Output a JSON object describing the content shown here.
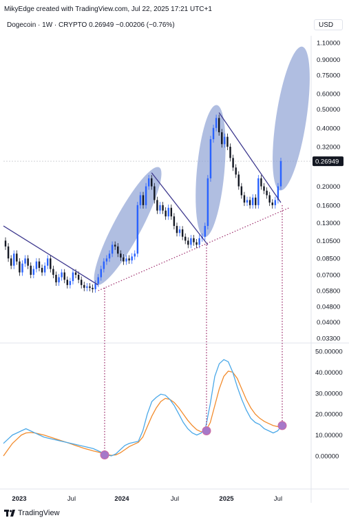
{
  "header": {
    "attribution": "MikyEdge created with TradingView.com, Jul 22, 2025 17:21 UTC+1"
  },
  "symbol": {
    "line": "Dogecoin · 1W · CRYPTO  0.26949  −0.00206 (−0.76%)",
    "currency": "USD"
  },
  "footer": {
    "brand": "TradingView"
  },
  "colors": {
    "up": "#2962ff",
    "down": "#131722",
    "trendline": "#3f3a8f",
    "support": "#9c2a6a",
    "ellipse": "#8fa3d4",
    "rsi": "#4aa8e8",
    "rsi_ma": "#f28b2c",
    "marker": "#a678c8"
  },
  "chart_data": [
    {
      "type": "candlestick",
      "scale": "log",
      "price_axis_ticks": [
        1.1,
        0.9,
        0.75,
        0.6,
        0.5,
        0.4,
        0.32,
        0.2,
        0.16,
        0.13,
        0.105,
        0.085,
        0.07,
        0.058,
        0.048,
        0.04,
        0.033
      ],
      "price_axis_labels": [
        "1.10000",
        "0.90000",
        "0.75000",
        "0.60000",
        "0.50000",
        "0.40000",
        "0.32000",
        "0.20000",
        "0.16000",
        "0.13000",
        "0.10500",
        "0.08500",
        "0.07000",
        "0.05800",
        "0.04800",
        "0.04000",
        "0.03300"
      ],
      "last_price": 0.26949,
      "last_price_label": "0.26949",
      "x_ticks": [
        "2023",
        "Jul",
        "2024",
        "Jul",
        "2025",
        "Jul"
      ],
      "ohlc_weekly_approx": [
        [
          0.105,
          0.098
        ],
        [
          0.098,
          0.085
        ],
        [
          0.085,
          0.078
        ],
        [
          0.078,
          0.09
        ],
        [
          0.09,
          0.082
        ],
        [
          0.082,
          0.072
        ],
        [
          0.072,
          0.08
        ],
        [
          0.08,
          0.085
        ],
        [
          0.085,
          0.078
        ],
        [
          0.078,
          0.07
        ],
        [
          0.07,
          0.075
        ],
        [
          0.075,
          0.082
        ],
        [
          0.082,
          0.076
        ],
        [
          0.076,
          0.072
        ],
        [
          0.072,
          0.078
        ],
        [
          0.078,
          0.085
        ],
        [
          0.085,
          0.075
        ],
        [
          0.075,
          0.07
        ],
        [
          0.07,
          0.064
        ],
        [
          0.064,
          0.068
        ],
        [
          0.068,
          0.072
        ],
        [
          0.072,
          0.066
        ],
        [
          0.066,
          0.062
        ],
        [
          0.062,
          0.065
        ],
        [
          0.065,
          0.072
        ],
        [
          0.072,
          0.07
        ],
        [
          0.07,
          0.066
        ],
        [
          0.066,
          0.062
        ],
        [
          0.062,
          0.06
        ],
        [
          0.06,
          0.061
        ],
        [
          0.061,
          0.06
        ],
        [
          0.06,
          0.059
        ],
        [
          0.059,
          0.063
        ],
        [
          0.063,
          0.068
        ],
        [
          0.068,
          0.075
        ],
        [
          0.075,
          0.082
        ],
        [
          0.082,
          0.085
        ],
        [
          0.085,
          0.09
        ],
        [
          0.09,
          0.1
        ],
        [
          0.1,
          0.098
        ],
        [
          0.098,
          0.09
        ],
        [
          0.09,
          0.086
        ],
        [
          0.086,
          0.082
        ],
        [
          0.082,
          0.085
        ],
        [
          0.085,
          0.083
        ],
        [
          0.083,
          0.087
        ],
        [
          0.087,
          0.09
        ],
        [
          0.09,
          0.16
        ],
        [
          0.16,
          0.18
        ],
        [
          0.18,
          0.16
        ],
        [
          0.16,
          0.2
        ],
        [
          0.2,
          0.22
        ],
        [
          0.22,
          0.2
        ],
        [
          0.2,
          0.17
        ],
        [
          0.17,
          0.15
        ],
        [
          0.15,
          0.16
        ],
        [
          0.16,
          0.15
        ],
        [
          0.15,
          0.14
        ],
        [
          0.14,
          0.155
        ],
        [
          0.155,
          0.14
        ],
        [
          0.14,
          0.125
        ],
        [
          0.125,
          0.115
        ],
        [
          0.115,
          0.12
        ],
        [
          0.12,
          0.11
        ],
        [
          0.11,
          0.105
        ],
        [
          0.105,
          0.1
        ],
        [
          0.1,
          0.108
        ],
        [
          0.108,
          0.103
        ],
        [
          0.103,
          0.1
        ],
        [
          0.1,
          0.108
        ],
        [
          0.108,
          0.11
        ],
        [
          0.11,
          0.125
        ],
        [
          0.125,
          0.22
        ],
        [
          0.22,
          0.35
        ],
        [
          0.35,
          0.4
        ],
        [
          0.4,
          0.45
        ],
        [
          0.45,
          0.38
        ],
        [
          0.38,
          0.33
        ],
        [
          0.33,
          0.36
        ],
        [
          0.36,
          0.32
        ],
        [
          0.32,
          0.28
        ],
        [
          0.28,
          0.25
        ],
        [
          0.25,
          0.23
        ],
        [
          0.23,
          0.2
        ],
        [
          0.2,
          0.18
        ],
        [
          0.18,
          0.165
        ],
        [
          0.165,
          0.17
        ],
        [
          0.17,
          0.16
        ],
        [
          0.16,
          0.175
        ],
        [
          0.175,
          0.16
        ],
        [
          0.16,
          0.22
        ],
        [
          0.22,
          0.2
        ],
        [
          0.2,
          0.19
        ],
        [
          0.19,
          0.18
        ],
        [
          0.18,
          0.165
        ],
        [
          0.165,
          0.16
        ],
        [
          0.16,
          0.17
        ],
        [
          0.17,
          0.2
        ],
        [
          0.2,
          0.27
        ]
      ]
    },
    {
      "type": "line",
      "name": "",
      "axis_ticks": [
        50,
        40,
        30,
        20,
        10,
        0
      ],
      "axis_labels": [
        "50.00000",
        "40.00000",
        "30.00000",
        "20.00000",
        "10.00000",
        "0.00000"
      ],
      "rsi": [
        6,
        8,
        10,
        11,
        12,
        13,
        12,
        11,
        10,
        9,
        8.5,
        8,
        7.5,
        7,
        6.5,
        6,
        5.5,
        5,
        4.5,
        4,
        3.5,
        2.5,
        1.5,
        0.5,
        0,
        1,
        3,
        5,
        6,
        6.5,
        7,
        12,
        20,
        26,
        28,
        29.5,
        29,
        27,
        24,
        20,
        16,
        13,
        11,
        10,
        11,
        14,
        25,
        38,
        44,
        46,
        45,
        40,
        33,
        27,
        22,
        18,
        16,
        15,
        13,
        12,
        11,
        12,
        15
      ],
      "rsi_ma": [
        0,
        3,
        6,
        8,
        10,
        11,
        11.2,
        11,
        10.5,
        10,
        9.3,
        8.6,
        7.9,
        7.2,
        6.5,
        5.8,
        5,
        4.3,
        3.6,
        3,
        2.4,
        1.9,
        1.3,
        0.7,
        0.3,
        0.5,
        1.5,
        3,
        4.5,
        5.5,
        6.5,
        9,
        14,
        19,
        23,
        26,
        27.5,
        27,
        25.5,
        23,
        20,
        17,
        14.5,
        12.5,
        11.5,
        12,
        16,
        24,
        32,
        38,
        40.5,
        40,
        37,
        32,
        27,
        23,
        20,
        18,
        16.5,
        15.5,
        14.5,
        14,
        14.5
      ]
    }
  ]
}
